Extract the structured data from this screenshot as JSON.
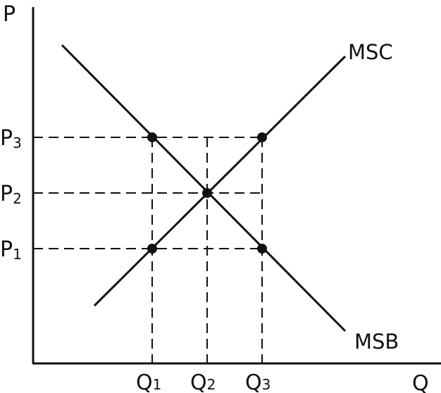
{
  "axes": {
    "y_label": "P",
    "x_label": "Q"
  },
  "curves": [
    {
      "label": "MSC",
      "kind": "supply-like"
    },
    {
      "label": "MSB",
      "kind": "demand-like"
    }
  ],
  "price_ticks": [
    {
      "main": "P",
      "sub": "3"
    },
    {
      "main": "P",
      "sub": "2"
    },
    {
      "main": "P",
      "sub": "1"
    }
  ],
  "quantity_ticks": [
    {
      "main": "Q",
      "sub": "1"
    },
    {
      "main": "Q",
      "sub": "2"
    },
    {
      "main": "Q",
      "sub": "3"
    }
  ],
  "colors": {
    "line": "#111111",
    "background": "#ffffff"
  }
}
